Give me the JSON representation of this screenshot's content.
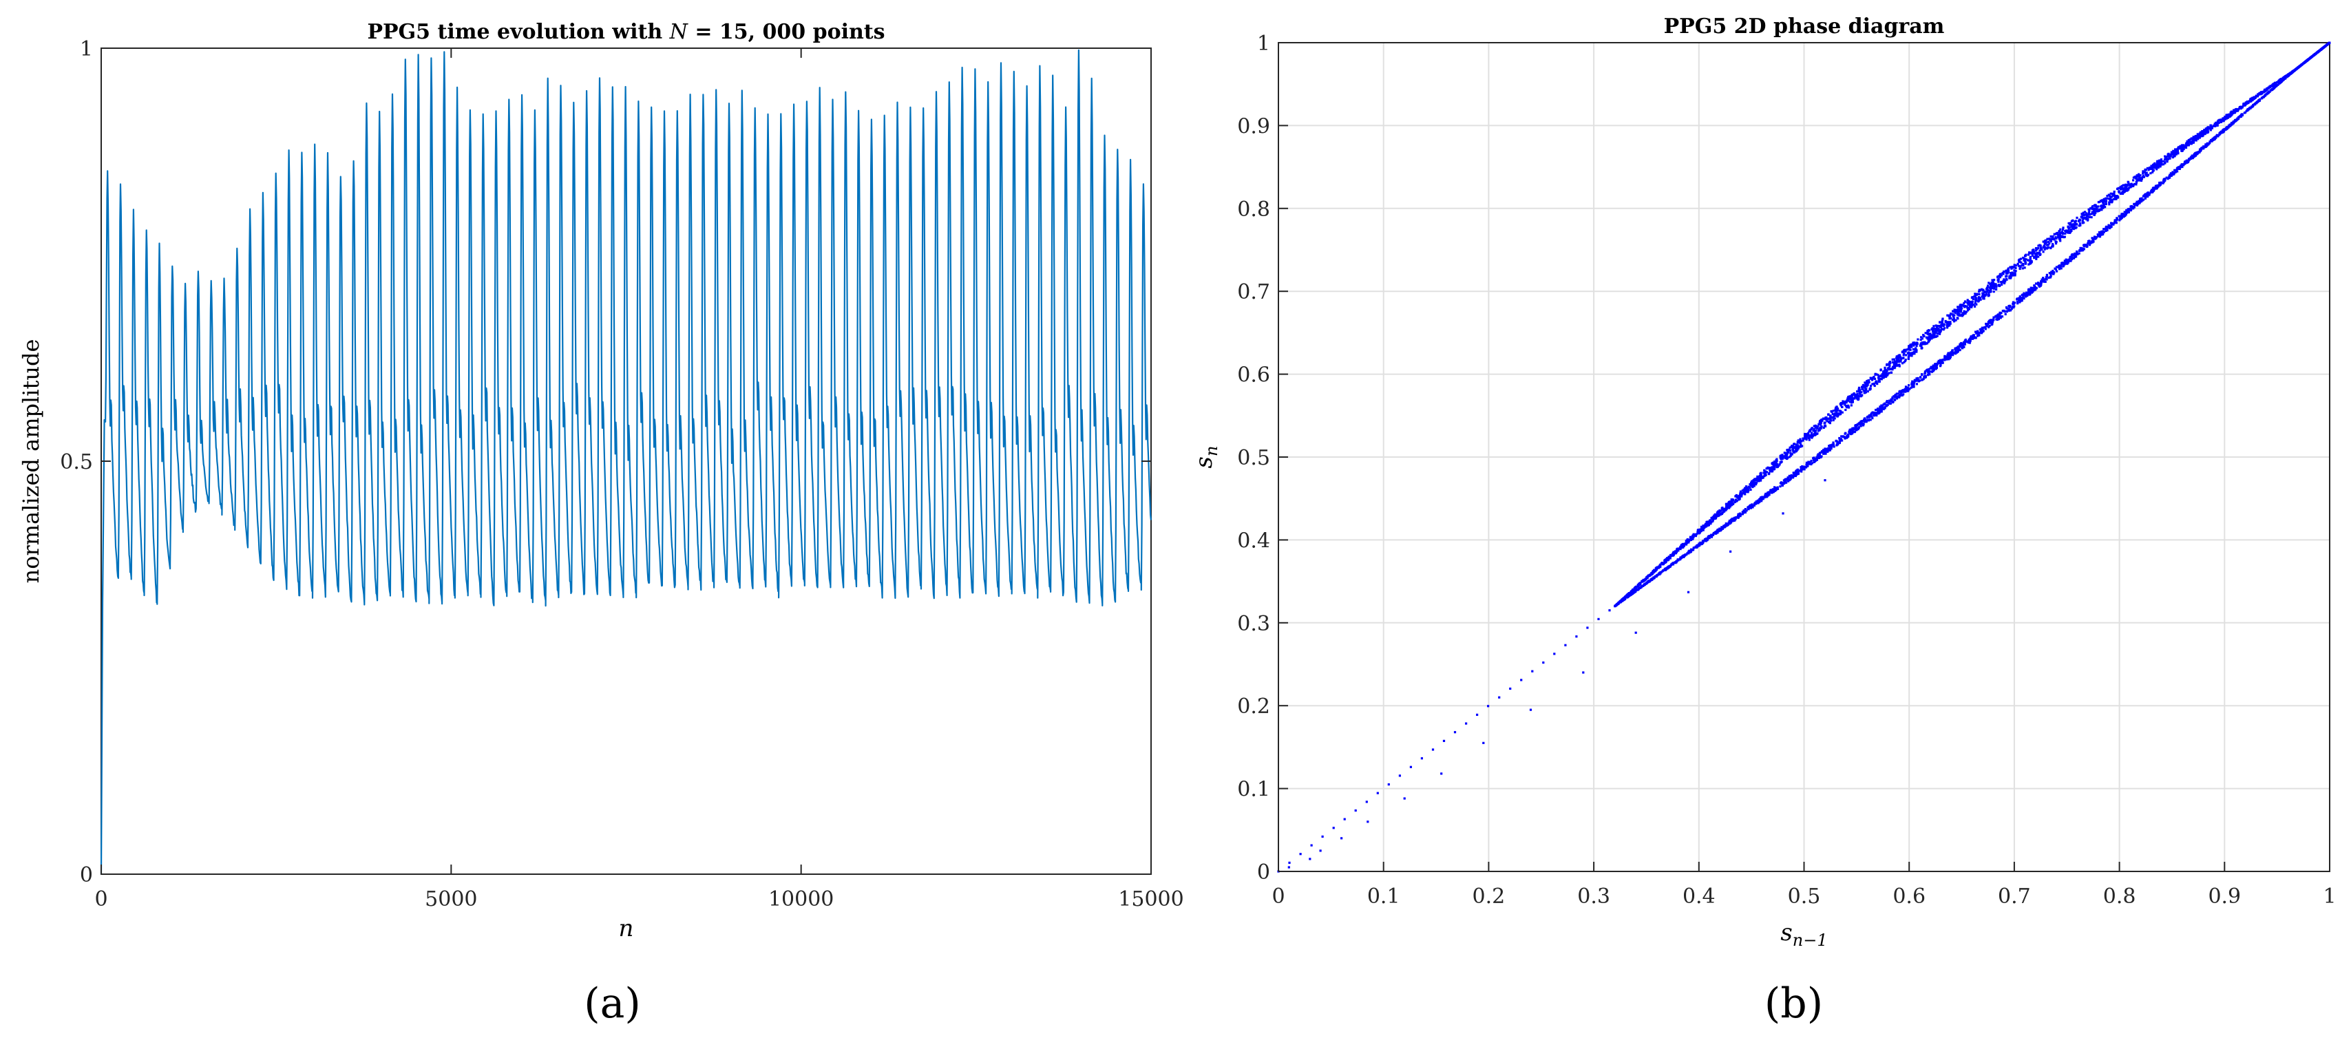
{
  "colors": {
    "series_a": "#0072BD",
    "series_b": "#0000FF",
    "grid": "#E0E0E0",
    "axis": "#262626"
  },
  "panels": {
    "a_label": "(a)",
    "b_label": "(b)"
  },
  "chart_data": [
    {
      "type": "line",
      "title": "PPG5 time evolution with N = 15,000 points",
      "title_parts": {
        "pre": "PPG5 time evolution with ",
        "var": "N",
        "post": " = 15, 000 points"
      },
      "xlabel": "n",
      "ylabel": "normalized amplitude",
      "xlim": [
        0,
        15000
      ],
      "ylim": [
        0,
        1
      ],
      "xticks": [
        "0",
        "5000",
        "10000",
        "15000"
      ],
      "yticks": [
        "0",
        "0.5",
        "1"
      ],
      "grid": false,
      "series": [
        {
          "beat_period": 185,
          "beats": 81,
          "peaks": [
            0.85,
            0.84,
            0.8,
            0.78,
            0.76,
            0.74,
            0.72,
            0.73,
            0.72,
            0.72,
            0.76,
            0.8,
            0.82,
            0.85,
            0.88,
            0.88,
            0.88,
            0.87,
            0.85,
            0.87,
            0.94,
            0.92,
            0.95,
            0.99,
            0.99,
            0.99,
            1.0,
            0.95,
            0.93,
            0.92,
            0.93,
            0.94,
            0.95,
            0.93,
            0.96,
            0.96,
            0.94,
            0.95,
            0.97,
            0.96,
            0.95,
            0.94,
            0.93,
            0.92,
            0.93,
            0.94,
            0.95,
            0.95,
            0.94,
            0.95,
            0.93,
            0.92,
            0.92,
            0.93,
            0.94,
            0.95,
            0.94,
            0.95,
            0.93,
            0.92,
            0.92,
            0.93,
            0.93,
            0.93,
            0.95,
            0.96,
            0.98,
            0.97,
            0.96,
            0.98,
            0.97,
            0.96,
            0.98,
            0.97,
            0.93,
            1.0,
            0.96,
            0.9,
            0.88,
            0.86,
            0.84
          ],
          "troughs": [
            0.36,
            0.36,
            0.34,
            0.33,
            0.37,
            0.42,
            0.44,
            0.45,
            0.44,
            0.42,
            0.4,
            0.38,
            0.36,
            0.35,
            0.34,
            0.34,
            0.34,
            0.34,
            0.33,
            0.33,
            0.33,
            0.34,
            0.34,
            0.33,
            0.33,
            0.33,
            0.34,
            0.34,
            0.34,
            0.33,
            0.34,
            0.34,
            0.33,
            0.33,
            0.34,
            0.34,
            0.34,
            0.34,
            0.34,
            0.34,
            0.34,
            0.35,
            0.35,
            0.35,
            0.35,
            0.35,
            0.35,
            0.35,
            0.35,
            0.35,
            0.35,
            0.34,
            0.35,
            0.35,
            0.35,
            0.35,
            0.35,
            0.35,
            0.35,
            0.34,
            0.34,
            0.34,
            0.35,
            0.34,
            0.34,
            0.34,
            0.34,
            0.34,
            0.34,
            0.34,
            0.34,
            0.34,
            0.34,
            0.34,
            0.33,
            0.33,
            0.33,
            0.33,
            0.34,
            0.35,
            0.38
          ],
          "notch_level": 0.53,
          "start_values": [
            0.0,
            0.33,
            0.55
          ]
        }
      ]
    },
    {
      "type": "scatter",
      "title": "PPG5 2D phase diagram",
      "xlabel": "s_{n−1}",
      "xlabel_parts": {
        "base": "s",
        "sub": "n−1"
      },
      "ylabel": "s_n",
      "ylabel_parts": {
        "base": "s",
        "sub": "n"
      },
      "xlim": [
        0,
        1
      ],
      "ylim": [
        0,
        1
      ],
      "xticks": [
        "0",
        "0.1",
        "0.2",
        "0.3",
        "0.4",
        "0.5",
        "0.6",
        "0.7",
        "0.8",
        "0.9",
        "1"
      ],
      "yticks": [
        "0",
        "0.1",
        "0.2",
        "0.3",
        "0.4",
        "0.5",
        "0.6",
        "0.7",
        "0.8",
        "0.9",
        "1"
      ],
      "grid": true,
      "series": [
        {
          "diagonal_points_range": [
            0.0,
            0.32
          ],
          "upper_band": {
            "x_range": [
              0.32,
              1.0
            ],
            "offset_max": 0.035
          },
          "lower_band": {
            "x_range": [
              0.32,
              1.0
            ],
            "offset_min": -0.02
          },
          "outliers": [
            [
              0.01,
              0.005
            ],
            [
              0.03,
              0.015
            ],
            [
              0.04,
              0.025
            ],
            [
              0.06,
              0.04
            ],
            [
              0.085,
              0.06
            ],
            [
              0.12,
              0.088
            ],
            [
              0.155,
              0.118
            ],
            [
              0.195,
              0.155
            ],
            [
              0.24,
              0.195
            ],
            [
              0.29,
              0.24
            ],
            [
              0.34,
              0.288
            ],
            [
              0.39,
              0.337
            ],
            [
              0.43,
              0.386
            ],
            [
              0.48,
              0.432
            ],
            [
              0.52,
              0.472
            ]
          ]
        }
      ]
    }
  ]
}
